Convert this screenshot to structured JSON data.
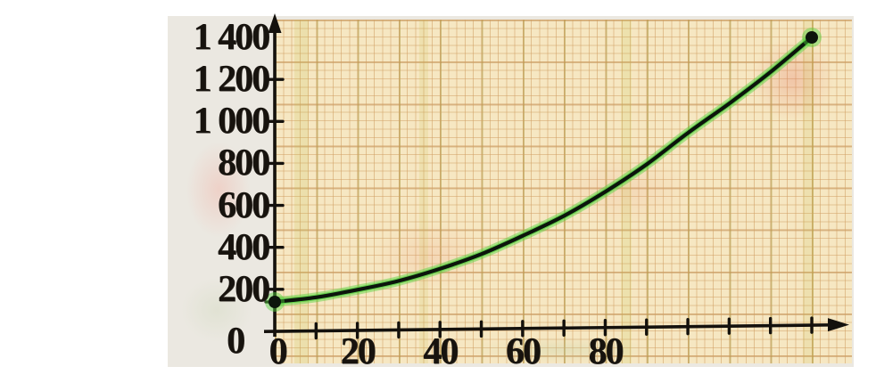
{
  "figure": {
    "description": "Scanned textbook graph: curve on squared graph paper rising from about 140 at x=0 to 1400 at x=130",
    "background_color": "#ffffff",
    "paper_margin_color": "#ebe8e1",
    "grid_paper_color": "#f6e7c2",
    "grid_line_color": "#d09e62",
    "axis_color": "#14110d",
    "label_color": "#17130e"
  },
  "chart_data": {
    "type": "line",
    "title": "",
    "xlabel": "",
    "ylabel": "",
    "xlim": [
      0,
      138
    ],
    "ylim": [
      0,
      1450
    ],
    "grid": true,
    "x_ticks": [
      10,
      20,
      30,
      40,
      50,
      60,
      70,
      80,
      90,
      100,
      110,
      120,
      130
    ],
    "x_tick_labels": [
      "0",
      "20",
      "40",
      "60",
      "80"
    ],
    "x_tick_label_values": [
      0,
      20,
      40,
      60,
      80
    ],
    "y_ticks": [
      200,
      400,
      600,
      800,
      1000,
      1200
    ],
    "y_tick_labels": [
      "1 400",
      "1 200",
      "1 000",
      "800",
      "600",
      "400",
      "200",
      "0"
    ],
    "y_tick_label_values": [
      1400,
      1200,
      1000,
      800,
      600,
      400,
      200,
      0
    ],
    "y_start_marker": 140,
    "series": [
      {
        "name": "curve",
        "color": "#0c150c",
        "glow_color": "#4fd23c",
        "points": [
          [
            0,
            140
          ],
          [
            10,
            162
          ],
          [
            20,
            198
          ],
          [
            30,
            240
          ],
          [
            40,
            298
          ],
          [
            50,
            368
          ],
          [
            60,
            455
          ],
          [
            70,
            550
          ],
          [
            80,
            665
          ],
          [
            90,
            795
          ],
          [
            100,
            945
          ],
          [
            110,
            1085
          ],
          [
            120,
            1235
          ],
          [
            130,
            1400
          ]
        ],
        "endpoint_markers": [
          [
            0,
            140
          ],
          [
            130,
            1400
          ]
        ]
      }
    ]
  }
}
